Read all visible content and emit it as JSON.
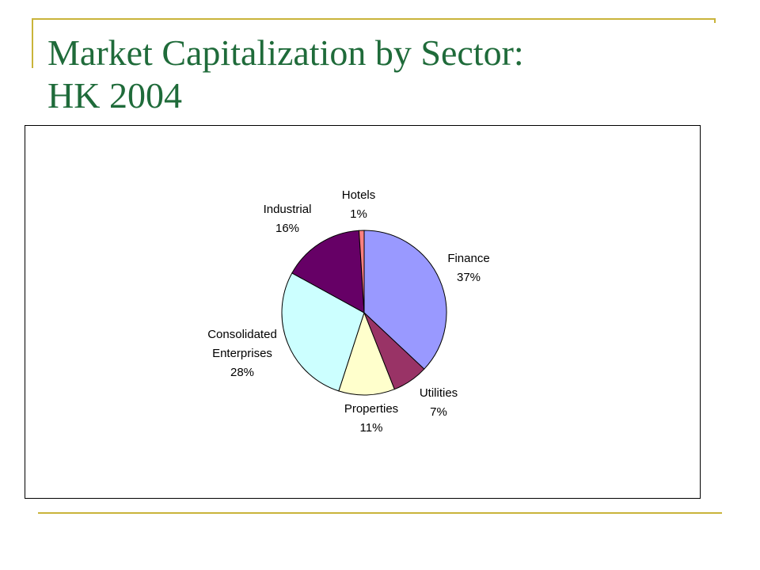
{
  "slide": {
    "title_line1": "Market Capitalization by Sector:",
    "title_line2": "HK 2004"
  },
  "chart_data": {
    "type": "pie",
    "title": "Market Capitalization by Sector: HK 2004",
    "unit": "%",
    "slices": [
      {
        "label": "Finance",
        "value": 37,
        "display": "37%",
        "color": "#9999ff"
      },
      {
        "label": "Utilities",
        "value": 7,
        "display": "7%",
        "color": "#993366"
      },
      {
        "label": "Properties",
        "value": 11,
        "display": "11%",
        "color": "#ffffcc"
      },
      {
        "label": "Consolidated Enterprises",
        "label_lines": [
          "Consolidated",
          "Enterprises"
        ],
        "value": 28,
        "display": "28%",
        "color": "#ccffff"
      },
      {
        "label": "Industrial",
        "value": 16,
        "display": "16%",
        "color": "#660066"
      },
      {
        "label": "Hotels",
        "value": 1,
        "display": "1%",
        "color": "#ff8080"
      }
    ],
    "legend": "none"
  }
}
